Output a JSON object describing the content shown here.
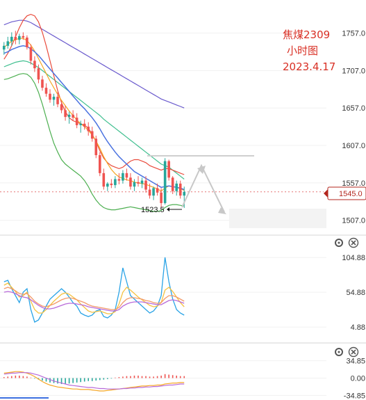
{
  "title": {
    "line1": "焦煤2309",
    "line2": "小时图",
    "line3": "2023.4.17"
  },
  "colors": {
    "up": "#26a69a",
    "down": "#ef5350",
    "ma_blue": "#4a72e0",
    "ma_orange": "#f5a623",
    "ma_red": "#e94b3c",
    "ma_teal": "#3fbf8f",
    "ma_purple": "#6a5acd",
    "boll_green": "#4caf50",
    "boll_red": "#e53935",
    "title": "#d93025",
    "price_badge": "#b3261e"
  },
  "current_price": "1545.0",
  "low_marker": "1523.5",
  "icons": [
    "gear-icon",
    "close-icon",
    "gear-icon",
    "close-icon"
  ],
  "chart_data": {
    "type": "line",
    "main_panel": {
      "y_ticks": [
        "1757.0",
        "1707.0",
        "1657.0",
        "1607.0",
        "1557.0",
        "1507.0"
      ],
      "ylim": [
        1490,
        1790
      ],
      "current_price": 1545.0,
      "low": 1523.5,
      "resistance_level": 1588,
      "candles": [
        [
          1735,
          1745,
          1728,
          1740
        ],
        [
          1740,
          1752,
          1736,
          1746
        ],
        [
          1746,
          1758,
          1740,
          1752
        ],
        [
          1752,
          1760,
          1742,
          1748
        ],
        [
          1748,
          1756,
          1742,
          1753
        ],
        [
          1753,
          1758,
          1748,
          1751
        ],
        [
          1751,
          1754,
          1735,
          1738
        ],
        [
          1738,
          1742,
          1715,
          1720
        ],
        [
          1720,
          1726,
          1705,
          1710
        ],
        [
          1710,
          1715,
          1690,
          1695
        ],
        [
          1695,
          1700,
          1680,
          1684
        ],
        [
          1684,
          1690,
          1672,
          1676
        ],
        [
          1676,
          1682,
          1664,
          1668
        ],
        [
          1668,
          1676,
          1660,
          1672
        ],
        [
          1672,
          1678,
          1658,
          1662
        ],
        [
          1662,
          1666,
          1650,
          1654
        ],
        [
          1654,
          1660,
          1640,
          1645
        ],
        [
          1645,
          1652,
          1636,
          1648
        ],
        [
          1648,
          1654,
          1640,
          1644
        ],
        [
          1644,
          1650,
          1630,
          1634
        ],
        [
          1634,
          1640,
          1624,
          1636
        ],
        [
          1636,
          1642,
          1628,
          1632
        ],
        [
          1632,
          1638,
          1620,
          1626
        ],
        [
          1626,
          1632,
          1612,
          1616
        ],
        [
          1616,
          1620,
          1590,
          1594
        ],
        [
          1594,
          1598,
          1566,
          1570
        ],
        [
          1570,
          1576,
          1548,
          1552
        ],
        [
          1552,
          1558,
          1546,
          1556
        ],
        [
          1556,
          1562,
          1550,
          1554
        ],
        [
          1554,
          1566,
          1550,
          1562
        ],
        [
          1562,
          1570,
          1555,
          1560
        ],
        [
          1560,
          1574,
          1556,
          1570
        ],
        [
          1570,
          1576,
          1560,
          1564
        ],
        [
          1564,
          1570,
          1548,
          1552
        ],
        [
          1552,
          1562,
          1546,
          1558
        ],
        [
          1558,
          1566,
          1552,
          1556
        ],
        [
          1556,
          1564,
          1550,
          1560
        ],
        [
          1560,
          1566,
          1544,
          1548
        ],
        [
          1548,
          1556,
          1536,
          1540
        ],
        [
          1540,
          1552,
          1534,
          1550
        ],
        [
          1550,
          1556,
          1540,
          1544
        ],
        [
          1544,
          1550,
          1524,
          1530
        ],
        [
          1530,
          1590,
          1528,
          1586
        ],
        [
          1586,
          1588,
          1560,
          1564
        ],
        [
          1564,
          1566,
          1542,
          1546
        ],
        [
          1546,
          1560,
          1540,
          1556
        ],
        [
          1556,
          1560,
          1536,
          1540
        ],
        [
          1540,
          1552,
          1523.5,
          1545
        ]
      ],
      "ma_blue": [
        1730,
        1732,
        1735,
        1737,
        1739,
        1740,
        1739,
        1736,
        1732,
        1727,
        1721,
        1715,
        1709,
        1703,
        1697,
        1691,
        1685,
        1679,
        1673,
        1667,
        1661,
        1656,
        1650,
        1644,
        1637,
        1629,
        1620,
        1612,
        1605,
        1598,
        1592,
        1587,
        1582,
        1577,
        1572,
        1569,
        1566,
        1563,
        1560,
        1557,
        1554,
        1551,
        1552,
        1553,
        1552,
        1551,
        1550,
        1548
      ],
      "ma_orange": [
        1738,
        1742,
        1746,
        1748,
        1750,
        1750,
        1747,
        1741,
        1733,
        1723,
        1713,
        1703,
        1693,
        1684,
        1675,
        1667,
        1660,
        1653,
        1647,
        1641,
        1636,
        1632,
        1627,
        1621,
        1613,
        1603,
        1592,
        1583,
        1575,
        1569,
        1565,
        1563,
        1561,
        1560,
        1558,
        1557,
        1556,
        1555,
        1553,
        1551,
        1549,
        1546,
        1550,
        1553,
        1552,
        1551,
        1549,
        1547
      ],
      "ma_red": [
        1722,
        1730,
        1740,
        1752,
        1764,
        1774,
        1780,
        1782,
        1780,
        1772,
        1758,
        1740,
        1720,
        1700,
        1680,
        1664,
        1652,
        1644,
        1640,
        1638,
        1636,
        1634,
        1630,
        1622,
        1612,
        1600,
        1590,
        1584,
        1580,
        1578,
        1576,
        1578,
        1582,
        1586,
        1588,
        1588,
        1586,
        1584,
        1580,
        1578,
        1576,
        1574,
        1576,
        1576,
        1574,
        1572,
        1570,
        1568
      ],
      "ma_teal": [
        1712,
        1714,
        1716,
        1718,
        1719,
        1720,
        1719,
        1717,
        1714,
        1711,
        1707,
        1703,
        1699,
        1695,
        1691,
        1687,
        1683,
        1679,
        1675,
        1671,
        1667,
        1663,
        1659,
        1655,
        1651,
        1647,
        1642,
        1638,
        1634,
        1630,
        1626,
        1622,
        1618,
        1614,
        1610,
        1606,
        1602,
        1598,
        1594,
        1590,
        1586,
        1582,
        1580,
        1578,
        1574,
        1570,
        1566,
        1562
      ],
      "ma_purple": [
        1768,
        1770,
        1772,
        1773,
        1774,
        1774,
        1773,
        1771,
        1768,
        1765,
        1762,
        1759,
        1756,
        1753,
        1750,
        1747,
        1744,
        1741,
        1738,
        1735,
        1732,
        1729,
        1726,
        1723,
        1720,
        1717,
        1714,
        1711,
        1708,
        1705,
        1702,
        1699,
        1696,
        1693,
        1690,
        1687,
        1684,
        1681,
        1678,
        1675,
        1672,
        1669,
        1667,
        1665,
        1663,
        1661,
        1659,
        1657
      ],
      "boll_green": [
        1695,
        1696,
        1698,
        1700,
        1702,
        1703,
        1702,
        1698,
        1690,
        1678,
        1662,
        1644,
        1626,
        1610,
        1598,
        1588,
        1582,
        1578,
        1574,
        1570,
        1566,
        1560,
        1552,
        1542,
        1534,
        1528,
        1524,
        1522,
        1521,
        1521,
        1522,
        1523,
        1524,
        1525,
        1524,
        1523,
        1522,
        1521,
        1520,
        1519,
        1519,
        1520,
        1524,
        1527,
        1528,
        1528,
        1527,
        1526
      ]
    },
    "oscillator_panel": {
      "y_ticks": [
        "104.88",
        "54.88",
        "4.88"
      ],
      "ylim": [
        -15,
        115
      ],
      "series": [
        {
          "values": [
            70,
            72,
            60,
            50,
            40,
            55,
            60,
            30,
            12,
            15,
            25,
            35,
            45,
            50,
            55,
            60,
            55,
            48,
            40,
            35,
            25,
            22,
            20,
            22,
            28,
            30,
            20,
            18,
            22,
            30,
            55,
            90,
            70,
            50,
            45,
            40,
            35,
            30,
            25,
            28,
            35,
            50,
            105,
            70,
            45,
            30,
            25,
            22
          ]
        },
        {
          "values": [
            65,
            68,
            62,
            56,
            48,
            50,
            55,
            42,
            30,
            25,
            25,
            30,
            36,
            42,
            47,
            52,
            54,
            52,
            48,
            44,
            38,
            33,
            28,
            26,
            27,
            28,
            26,
            24,
            24,
            27,
            38,
            55,
            62,
            58,
            53,
            48,
            44,
            40,
            36,
            34,
            35,
            40,
            58,
            62,
            56,
            48,
            40,
            34
          ]
        },
        {
          "values": [
            60,
            62,
            60,
            57,
            53,
            52,
            53,
            48,
            42,
            38,
            35,
            34,
            36,
            38,
            41,
            44,
            46,
            47,
            46,
            44,
            42,
            40,
            37,
            35,
            34,
            33,
            32,
            31,
            30,
            30,
            33,
            40,
            45,
            47,
            47,
            46,
            45,
            43,
            42,
            40,
            39,
            40,
            46,
            50,
            50,
            48,
            45,
            42
          ]
        },
        {
          "values": [
            55,
            56,
            55,
            53,
            50,
            48,
            47,
            44,
            40,
            36,
            33,
            31,
            31,
            32,
            34,
            36,
            38,
            39,
            39,
            38,
            37,
            36,
            34,
            33,
            32,
            31,
            30,
            29,
            28,
            28,
            30,
            35,
            38,
            40,
            41,
            41,
            41,
            40,
            39,
            38,
            37,
            37,
            40,
            43,
            44,
            43,
            41,
            39
          ]
        }
      ]
    },
    "macd_panel": {
      "y_ticks": [
        "34.85",
        "0.00",
        "-34.85"
      ],
      "ylim": [
        -40,
        40
      ],
      "histogram": [
        2,
        3,
        4,
        5,
        5,
        4,
        3,
        1,
        -1,
        -3,
        -5,
        -7,
        -9,
        -10,
        -11,
        -12,
        -12,
        -11,
        -10,
        -9,
        -8,
        -7,
        -6,
        -6,
        -5,
        -4,
        -3,
        -2,
        -1,
        1,
        2,
        3,
        4,
        4,
        5,
        5,
        4,
        4,
        3,
        3,
        4,
        5,
        8,
        7,
        6,
        5,
        4,
        4
      ],
      "dif": [
        10,
        11,
        12,
        13,
        13,
        12,
        10,
        7,
        3,
        -2,
        -7,
        -11,
        -14,
        -16,
        -18,
        -19,
        -20,
        -21,
        -22,
        -22,
        -23,
        -23,
        -23,
        -24,
        -25,
        -26,
        -26,
        -25,
        -24,
        -23,
        -22,
        -21,
        -20,
        -19,
        -18,
        -17,
        -16,
        -16,
        -15,
        -15,
        -14,
        -14,
        -12,
        -11,
        -10,
        -10,
        -9,
        -9
      ],
      "dea": [
        8,
        9,
        10,
        10,
        11,
        11,
        11,
        10,
        8,
        6,
        3,
        0,
        -3,
        -6,
        -8,
        -10,
        -12,
        -14,
        -15,
        -16,
        -17,
        -18,
        -19,
        -19,
        -20,
        -21,
        -21,
        -22,
        -22,
        -22,
        -22,
        -21,
        -21,
        -20,
        -20,
        -19,
        -19,
        -18,
        -18,
        -17,
        -17,
        -16,
        -15,
        -14,
        -14,
        -13,
        -12,
        -12
      ]
    }
  }
}
